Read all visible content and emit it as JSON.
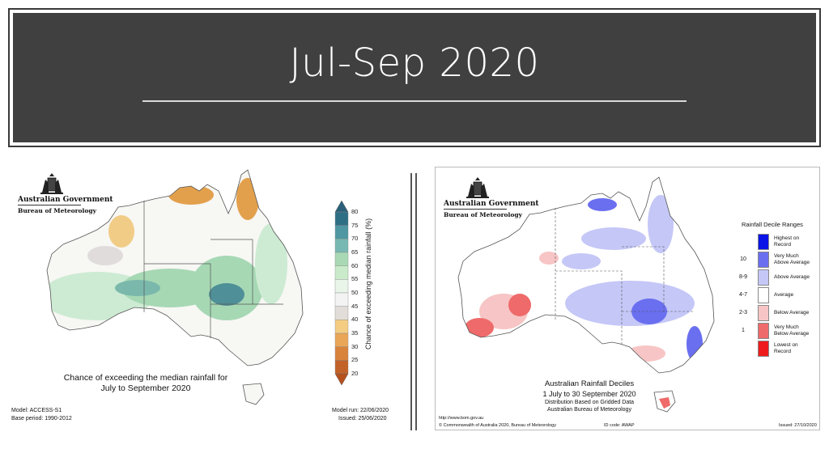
{
  "title": "Jul-Sep 2020",
  "logo": {
    "government": "Australian Government",
    "bureau": "Bureau of Meteorology"
  },
  "outlook": {
    "caption_line1": "Chance of exceeding the median rainfall for",
    "caption_line2": "July to September 2020",
    "model": "Model: ACCESS-S1",
    "base_period": "Base period: 1990-2012",
    "model_run": "Model run: 22/06/2020",
    "issued": "Issued: 25/06/2020",
    "legend_title": "Chance of exceeding median rainfall (%)",
    "legend_ticks": [
      "80",
      "75",
      "70",
      "65",
      "60",
      "55",
      "50",
      "45",
      "40",
      "35",
      "30",
      "25",
      "20"
    ],
    "legend_colors": [
      "#2f6f86",
      "#4f97a3",
      "#78b8b2",
      "#a9d9b4",
      "#c9ebc9",
      "#eaf5ea",
      "#f3f3f3",
      "#e2ddd8",
      "#f4cd82",
      "#e9a657",
      "#d9823a",
      "#c36228"
    ],
    "map_colors": {
      "land": "#f7f7f4",
      "wet1": "#cdebd3",
      "wet2": "#a6d8b4",
      "wet3": "#7bb8ac",
      "wet4": "#4f8f98",
      "dry1": "#f1cc86",
      "dry2": "#e3a04c",
      "gray": "#e0dcdc"
    }
  },
  "deciles": {
    "legend_title": "Rainfall Decile Ranges",
    "ranges": [
      {
        "code": "",
        "label": [
          "Highest on",
          "Record"
        ],
        "color": "#0a14e6"
      },
      {
        "code": "10",
        "label": [
          "Very Much",
          "Above Average"
        ],
        "color": "#6a6ff0"
      },
      {
        "code": "8-9",
        "label": [
          "Above Average"
        ],
        "color": "#c5c7f7"
      },
      {
        "code": "4-7",
        "label": [
          "Average"
        ],
        "color": "#ffffff"
      },
      {
        "code": "2-3",
        "label": [
          "Below Average"
        ],
        "color": "#f7c5c5"
      },
      {
        "code": "1",
        "label": [
          "Very Much",
          "Below Average"
        ],
        "color": "#ef6a6a"
      },
      {
        "code": "",
        "label": [
          "Lowest on",
          "Record"
        ],
        "color": "#ee1c1c"
      }
    ],
    "caption_title": "Australian Rainfall Deciles",
    "caption_period": "1 July to 30 September 2020",
    "caption_line3": "Distribution Based on Gridded Data",
    "caption_line4": "Australian Bureau of Meteorology",
    "url": "http://www.bom.gov.au",
    "copyright": "© Commonwealth of Australia 2020, Bureau of Meteorology",
    "id_code": "ID code: AWAP",
    "issued": "Issued: 27/10/2020",
    "map_colors": {
      "land": "#ffffff",
      "above": "#c5c7f7",
      "vmabove": "#6a6ff0",
      "highest": "#1a22e0",
      "below": "#f7c5c5",
      "vmbelow": "#ef6a6a"
    }
  }
}
